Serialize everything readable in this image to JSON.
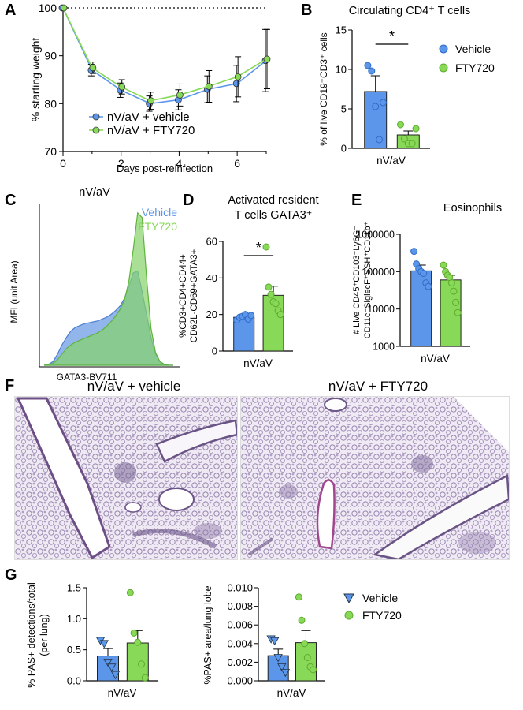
{
  "panels": {
    "a": {
      "letter": "A"
    },
    "b": {
      "letter": "B",
      "title": "Circulating CD4⁺ T cells"
    },
    "c": {
      "letter": "C",
      "title": "nV/aV"
    },
    "d": {
      "letter": "D",
      "title_line1": "Activated resident",
      "title_line2": "T cells GATA3⁺"
    },
    "e": {
      "letter": "E",
      "title": "Eosinophils"
    },
    "f": {
      "letter": "F",
      "left_title": "nV/aV + vehicle",
      "right_title": "nV/aV + FTY720"
    },
    "g": {
      "letter": "G"
    }
  },
  "colors": {
    "vehicle": "#5b96ea",
    "fty720": "#88d957",
    "vehicle_dark": "#2f6cc7",
    "fty720_dark": "#5faa2e",
    "histo_vehicle": "#7fa8e8",
    "histo_fty720": "#86d36a"
  },
  "chart_data": [
    {
      "id": "A",
      "type": "line",
      "xlabel": "Days post-reinfection",
      "ylabel": "% starting weight",
      "xlim": [
        0,
        7
      ],
      "ylim": [
        70,
        100
      ],
      "xticks": [
        0,
        2,
        4,
        6
      ],
      "yticks": [
        70,
        80,
        90,
        100
      ],
      "reference_line": 100,
      "legend": "bottom-left",
      "x": [
        0,
        1,
        2,
        3,
        4,
        5,
        6,
        7
      ],
      "series": [
        {
          "name": "nV/aV + vehicle",
          "color": "#5b96ea",
          "values": [
            100,
            87,
            82.8,
            80,
            80.8,
            83,
            84.2,
            89
          ],
          "error": [
            0.3,
            1.2,
            1.5,
            1.6,
            2.1,
            2.8,
            3.8,
            6.5
          ]
        },
        {
          "name": "nV/aV + FTY720",
          "color": "#88d957",
          "values": [
            100,
            87.5,
            83.5,
            80.6,
            81.8,
            83.6,
            85.6,
            89.3
          ],
          "error": [
            0.3,
            1.2,
            1.5,
            1.8,
            2.3,
            3.3,
            4.2,
            6.2
          ]
        }
      ]
    },
    {
      "id": "B",
      "type": "bar",
      "ylabel": "% of live CD19⁻CD3⁺ cells",
      "xlabel": "nV/aV",
      "ylim": [
        0,
        15
      ],
      "yticks": [
        0,
        5,
        10,
        15
      ],
      "legend": "right",
      "significance": "*",
      "series": [
        {
          "name": "Vehicle",
          "mean": 7.2,
          "sem": 2.0,
          "points": [
            10.5,
            9.8,
            5.3,
            1.1,
            5.8
          ]
        },
        {
          "name": "FTY720",
          "mean": 1.7,
          "sem": 0.5,
          "points": [
            3.0,
            1.2,
            0.6,
            0.6,
            2.5
          ]
        }
      ]
    },
    {
      "id": "C",
      "type": "area",
      "xlabel": "GATA3-BV711",
      "ylabel": "MFI (unit Area)",
      "legend": "top-right",
      "series": [
        {
          "name": "Vehicle",
          "values": [
            0,
            1,
            4,
            12,
            22,
            30,
            37,
            41,
            43,
            45,
            46,
            47,
            48,
            50,
            52,
            55,
            59,
            64,
            72,
            85,
            100,
            102,
            80,
            55,
            30,
            12,
            4,
            1,
            0,
            0
          ]
        },
        {
          "name": "FTY720",
          "values": [
            0,
            1,
            2,
            6,
            12,
            18,
            22,
            25,
            27,
            29,
            31,
            33,
            35,
            38,
            42,
            47,
            53,
            60,
            70,
            90,
            125,
            165,
            160,
            95,
            40,
            14,
            4,
            1,
            0,
            0
          ]
        }
      ]
    },
    {
      "id": "D",
      "type": "bar",
      "ylabel": "%CD3+CD4+CD44+ CD62L-CD69+GATA3+",
      "xlabel": "nV/aV",
      "ylim": [
        0,
        60
      ],
      "yticks": [
        0,
        20,
        40,
        60
      ],
      "significance": "*",
      "series": [
        {
          "name": "Vehicle",
          "mean": 18.5,
          "sem": 1.0,
          "points": [
            17,
            18.5,
            19,
            20,
            17.5,
            19.5
          ]
        },
        {
          "name": "FTY720",
          "mean": 30.5,
          "sem": 5.0,
          "points": [
            57,
            35,
            31,
            27,
            26,
            22,
            20
          ]
        }
      ]
    },
    {
      "id": "E",
      "type": "bar",
      "ylabel": "# Live CD45⁺CD103⁻Ly6G⁻ CD11c⁻SiglecF⁺SSH⁺CD11b⁺",
      "xlabel": "nV/aV",
      "scale": "log",
      "ylim": [
        1000,
        1000000
      ],
      "ytick_labels": [
        "1000",
        "10000",
        "100000",
        "1000000"
      ],
      "series": [
        {
          "name": "Vehicle",
          "mean": 105000,
          "sem": 45000,
          "points": [
            350000,
            160000,
            120000,
            100000,
            90000,
            50000,
            40000
          ]
        },
        {
          "name": "FTY720",
          "mean": 60000,
          "sem": 20000,
          "points": [
            150000,
            100000,
            80000,
            70000,
            50000,
            30000,
            15000,
            8000
          ]
        }
      ]
    },
    {
      "id": "G1",
      "type": "bar",
      "ylabel": "% PAS+ detections/total (per lung)",
      "xlabel": "nV/aV",
      "ylim": [
        0,
        1.5
      ],
      "yticks": [
        0.0,
        0.5,
        1.0,
        1.5
      ],
      "series": [
        {
          "name": "Vehicle",
          "mean": 0.4,
          "sem": 0.12,
          "points": [
            0.65,
            0.6,
            0.3,
            0.22,
            0.1
          ]
        },
        {
          "name": "FTY720",
          "mean": 0.61,
          "sem": 0.2,
          "points": [
            1.42,
            0.77,
            0.62,
            0.27,
            0.05
          ]
        }
      ]
    },
    {
      "id": "G2",
      "type": "bar",
      "ylabel": "%PAS+ area/lung lobe",
      "xlabel": "nV/aV",
      "ylim": [
        0,
        0.01
      ],
      "yticks": [
        0.0,
        0.002,
        0.004,
        0.006,
        0.008,
        0.01
      ],
      "ytick_labels": [
        "0.000",
        "0.002",
        "0.004",
        "0.006",
        "0.008",
        "0.010"
      ],
      "legend": "right",
      "series": [
        {
          "name": "Vehicle",
          "mean": 0.0027,
          "sem": 0.0007,
          "points": [
            0.0045,
            0.0043,
            0.0025,
            0.0015,
            0.0009
          ]
        },
        {
          "name": "FTY720",
          "mean": 0.0041,
          "sem": 0.0013,
          "points": [
            0.009,
            0.0065,
            0.004,
            0.0025,
            0.0015,
            0.0012
          ]
        }
      ]
    }
  ]
}
